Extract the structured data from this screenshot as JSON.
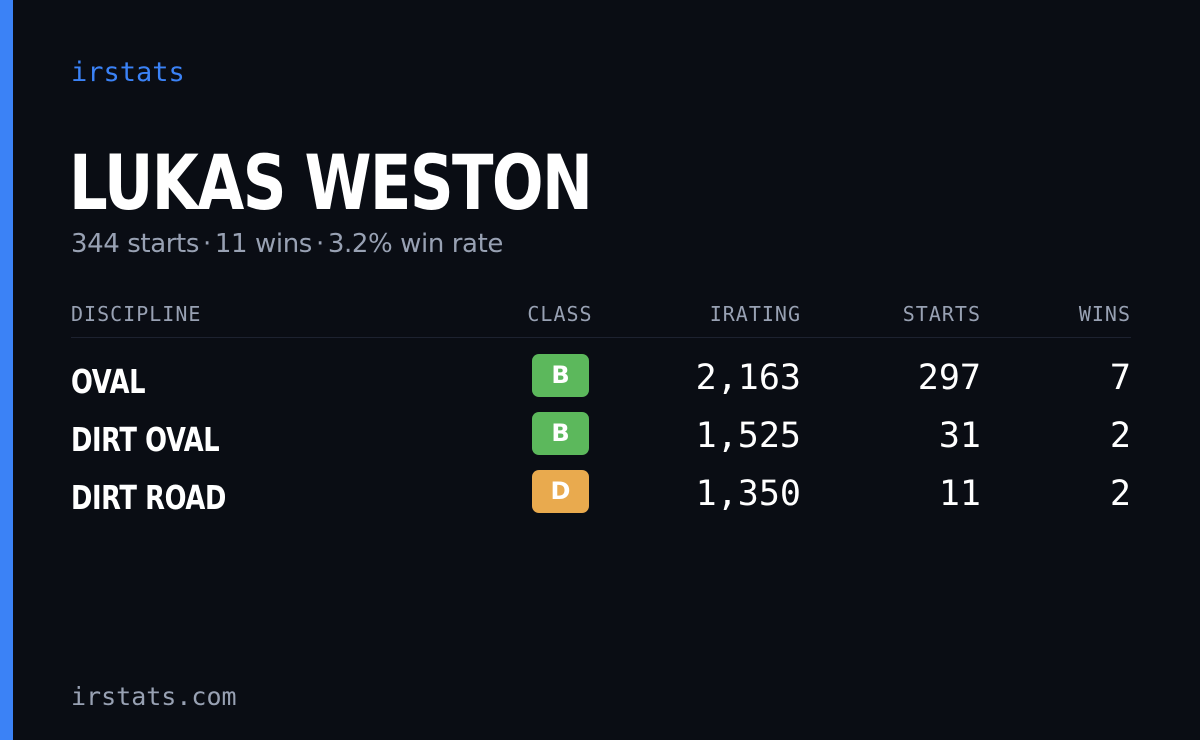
{
  "brand": "irstats",
  "driver": {
    "name": "LUKAS WESTON",
    "starts_text": "344 starts",
    "wins_text": "11 wins",
    "win_rate_text": "3.2% win rate",
    "separator": "·"
  },
  "table": {
    "headers": {
      "discipline": "DISCIPLINE",
      "class": "CLASS",
      "irating": "IRATING",
      "starts": "STARTS",
      "wins": "WINS"
    },
    "rows": [
      {
        "discipline": "OVAL",
        "class": "B",
        "class_color": "#5cb85c",
        "irating": "2,163",
        "starts": "297",
        "wins": "7"
      },
      {
        "discipline": "DIRT OVAL",
        "class": "B",
        "class_color": "#5cb85c",
        "irating": "1,525",
        "starts": "31",
        "wins": "2"
      },
      {
        "discipline": "DIRT ROAD",
        "class": "D",
        "class_color": "#e9aa4e",
        "irating": "1,350",
        "starts": "11",
        "wins": "2"
      }
    ]
  },
  "footer": "irstats.com",
  "colors": {
    "background": "#0a0d14",
    "accent": "#3b82f6",
    "muted_text": "#98a1b3",
    "class_b": "#5cb85c",
    "class_d": "#e9aa4e"
  }
}
